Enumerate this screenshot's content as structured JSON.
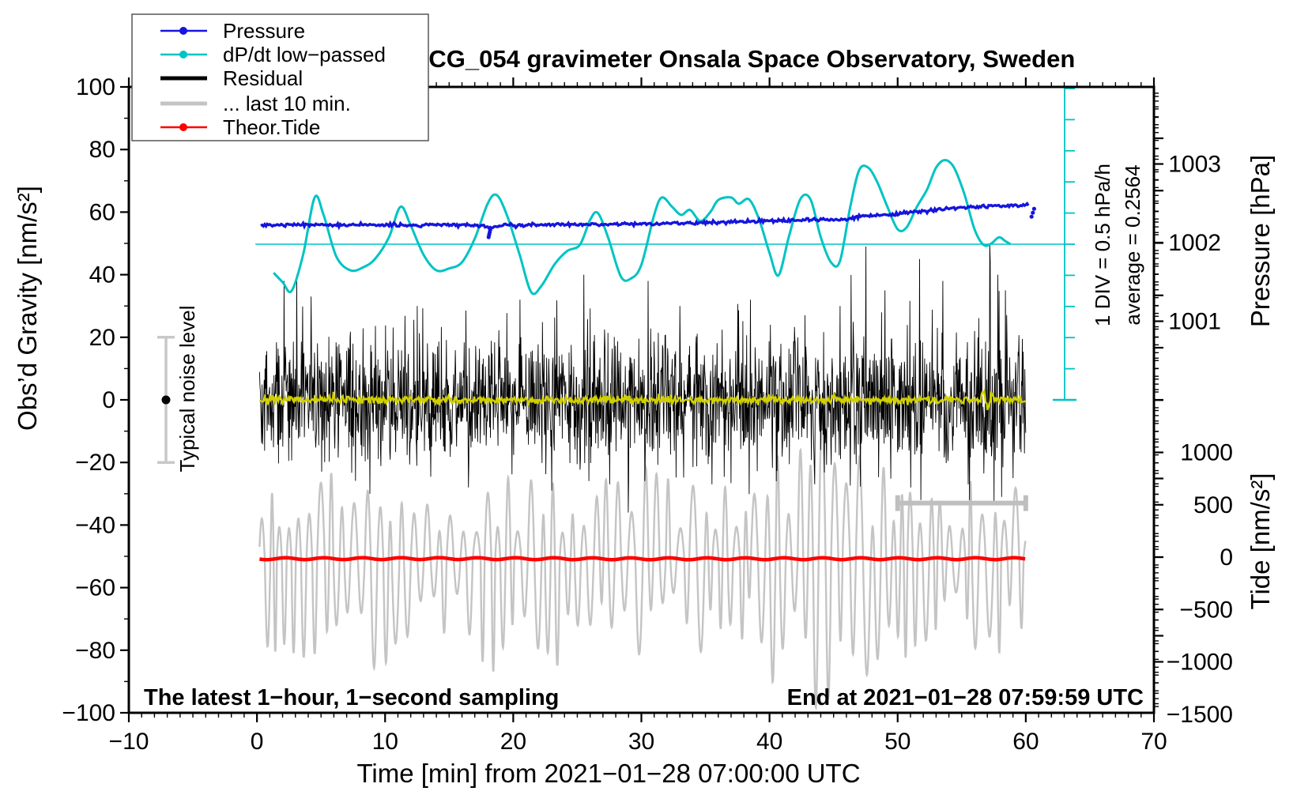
{
  "title": "SCG_054 gravimeter Onsala Space Observatory, Sweden",
  "legend": {
    "items": [
      {
        "label": "Pressure",
        "color": "#1515dd",
        "style": "line-dot"
      },
      {
        "label": "dP/dt low−passed",
        "color": "#00c3c3",
        "style": "line-dot"
      },
      {
        "label": "Residual",
        "color": "#000000",
        "style": "thick-line"
      },
      {
        "label": "... last 10 min.",
        "color": "#c4c4c4",
        "style": "thick-line"
      },
      {
        "label": "Theor.Tide",
        "color": "#ff0000",
        "style": "line-dot"
      }
    ]
  },
  "annotations": {
    "noise_label": "Typical noise level",
    "div_label": "1 DIV = 0.5 hPa/h",
    "average_label": "average = 0.2564",
    "sampling_label": "The latest 1−hour, 1−second sampling",
    "end_label": "End at 2021−01−28 07:59:59 UTC"
  },
  "chart_data": {
    "type": "line",
    "x_axis": {
      "label": "Time [min] from 2021−01−28 07:00:00 UTC",
      "range": [
        -10,
        70
      ],
      "major_ticks": [
        -10,
        0,
        10,
        20,
        30,
        40,
        50,
        60,
        70
      ],
      "minor_step": 1
    },
    "y_left": {
      "label": "Obs’d Gravity [nm/s²]",
      "range": [
        -100,
        100
      ],
      "major_ticks": [
        -100,
        -80,
        -60,
        -40,
        -20,
        0,
        20,
        40,
        60,
        80,
        100
      ],
      "minor_step": 10
    },
    "y_pressure": {
      "label": "Pressure [hPa]",
      "labeled_ticks": [
        1003,
        1002,
        1001
      ],
      "major_step": 1,
      "minor_step": 0.1
    },
    "y_tide": {
      "label": "Tide [nm/s²]",
      "labeled_ticks": [
        1000,
        500,
        0,
        -500,
        -1000,
        -1500
      ],
      "major_step": 500,
      "minor_step": 100
    },
    "series": {
      "pressure": {
        "name": "Pressure",
        "units": "hPa",
        "color": "#1515dd",
        "points": [
          [
            0.3,
            1002.221
          ],
          [
            3,
            1002.226
          ],
          [
            6,
            1002.221
          ],
          [
            9,
            1002.226
          ],
          [
            12,
            1002.221
          ],
          [
            15,
            1002.226
          ],
          [
            17.9,
            1002.211
          ],
          [
            18.2,
            1002.191
          ],
          [
            19,
            1002.216
          ],
          [
            22,
            1002.221
          ],
          [
            25,
            1002.231
          ],
          [
            28,
            1002.236
          ],
          [
            31,
            1002.241
          ],
          [
            34,
            1002.251
          ],
          [
            37,
            1002.261
          ],
          [
            40,
            1002.276
          ],
          [
            42,
            1002.283
          ],
          [
            44,
            1002.288
          ],
          [
            45.4,
            1002.291
          ],
          [
            47,
            1002.322
          ],
          [
            48,
            1002.342
          ],
          [
            50,
            1002.372
          ],
          [
            52,
            1002.402
          ],
          [
            54,
            1002.432
          ],
          [
            56,
            1002.452
          ],
          [
            58,
            1002.467
          ],
          [
            59.5,
            1002.477
          ],
          [
            60.3,
            1002.482
          ]
        ],
        "outlier_dots": [
          [
            18.08,
            1002.07
          ],
          [
            18.12,
            1002.1
          ],
          [
            18.16,
            1002.13
          ],
          [
            18.2,
            1002.16
          ],
          [
            60.45,
            1002.33
          ],
          [
            60.55,
            1002.38
          ],
          [
            60.65,
            1002.43
          ]
        ]
      },
      "dpdt_lowpassed": {
        "name": "dP/dt low-passed",
        "units": "hPa/h",
        "color": "#00c3c3",
        "zero_line_gravity_level_nms2": 50,
        "div_value_hpa_per_h": 0.5,
        "average_hpa_per_h": 0.2564,
        "points": [
          [
            1.3,
            -0.46
          ],
          [
            2.0,
            -0.61
          ],
          [
            2.7,
            -0.75
          ],
          [
            3.6,
            -0.17
          ],
          [
            4.5,
            0.75
          ],
          [
            5.2,
            0.47
          ],
          [
            6.2,
            -0.2
          ],
          [
            7.3,
            -0.42
          ],
          [
            8.3,
            -0.37
          ],
          [
            9.2,
            -0.24
          ],
          [
            10.3,
            0.11
          ],
          [
            11.2,
            0.6
          ],
          [
            12.0,
            0.3
          ],
          [
            13.0,
            -0.17
          ],
          [
            14.0,
            -0.42
          ],
          [
            15.0,
            -0.39
          ],
          [
            16.0,
            -0.29
          ],
          [
            17.0,
            0.09
          ],
          [
            18.0,
            0.65
          ],
          [
            18.7,
            0.79
          ],
          [
            19.5,
            0.47
          ],
          [
            20.5,
            -0.17
          ],
          [
            21.4,
            -0.77
          ],
          [
            22.2,
            -0.67
          ],
          [
            23.2,
            -0.33
          ],
          [
            24.2,
            -0.11
          ],
          [
            25.2,
            -0.01
          ],
          [
            26.0,
            0.39
          ],
          [
            26.6,
            0.5
          ],
          [
            27.4,
            0.11
          ],
          [
            28.4,
            -0.52
          ],
          [
            29.2,
            -0.55
          ],
          [
            30.0,
            -0.33
          ],
          [
            31.0,
            0.47
          ],
          [
            31.6,
            0.75
          ],
          [
            32.4,
            0.6
          ],
          [
            33.1,
            0.47
          ],
          [
            33.8,
            0.55
          ],
          [
            34.6,
            0.37
          ],
          [
            35.4,
            0.52
          ],
          [
            36.0,
            0.71
          ],
          [
            37.0,
            0.75
          ],
          [
            37.6,
            0.65
          ],
          [
            38.4,
            0.72
          ],
          [
            39.2,
            0.39
          ],
          [
            40.0,
            -0.14
          ],
          [
            40.7,
            -0.5
          ],
          [
            41.5,
            0.11
          ],
          [
            42.4,
            0.72
          ],
          [
            43.2,
            0.72
          ],
          [
            44.0,
            0.11
          ],
          [
            44.8,
            -0.29
          ],
          [
            45.5,
            -0.27
          ],
          [
            46.3,
            0.6
          ],
          [
            47.0,
            1.19
          ],
          [
            47.7,
            1.23
          ],
          [
            48.4,
            1.0
          ],
          [
            49.2,
            0.6
          ],
          [
            50.0,
            0.24
          ],
          [
            50.7,
            0.27
          ],
          [
            51.5,
            0.6
          ],
          [
            52.3,
            0.88
          ],
          [
            53.0,
            1.23
          ],
          [
            53.7,
            1.35
          ],
          [
            54.4,
            1.23
          ],
          [
            55.2,
            0.81
          ],
          [
            56.0,
            0.24
          ],
          [
            56.7,
            -0.01
          ],
          [
            57.3,
            0.01
          ],
          [
            57.9,
            0.11
          ],
          [
            58.4,
            0.05
          ],
          [
            58.8,
            0.0
          ]
        ]
      },
      "residual": {
        "name": "Residual",
        "units": "nm/s2",
        "color": "#000000",
        "mean": 0,
        "sigma_envelope": [
          [
            0.2,
            9
          ],
          [
            4,
            10
          ],
          [
            8,
            10
          ],
          [
            12,
            10
          ],
          [
            16,
            9
          ],
          [
            20,
            10
          ],
          [
            24,
            11
          ],
          [
            28,
            10
          ],
          [
            32,
            10
          ],
          [
            36,
            10
          ],
          [
            40,
            10
          ],
          [
            44,
            10
          ],
          [
            48,
            11
          ],
          [
            52,
            10
          ],
          [
            56,
            11
          ],
          [
            57.5,
            14
          ],
          [
            58.5,
            12
          ],
          [
            60,
            9
          ]
        ],
        "spikes": [
          [
            2.1,
            38
          ],
          [
            3.1,
            40
          ],
          [
            4.2,
            33
          ],
          [
            8.8,
            -30
          ],
          [
            12.5,
            30
          ],
          [
            16.5,
            -28
          ],
          [
            20.5,
            32
          ],
          [
            23,
            -29
          ],
          [
            25.5,
            40
          ],
          [
            27.5,
            -27
          ],
          [
            29,
            -26
          ],
          [
            30.5,
            38
          ],
          [
            33,
            30
          ],
          [
            35.5,
            -27
          ],
          [
            38.5,
            32
          ],
          [
            40.5,
            -26
          ],
          [
            43.5,
            -27
          ],
          [
            45.5,
            30
          ],
          [
            47.5,
            49
          ],
          [
            49,
            35
          ],
          [
            51,
            -28
          ],
          [
            51.7,
            45
          ],
          [
            51.8,
            -32
          ],
          [
            53.5,
            38
          ],
          [
            55.5,
            -27
          ],
          [
            57.2,
            44
          ],
          [
            57.5,
            -33
          ],
          [
            57.8,
            40
          ],
          [
            58.1,
            -31
          ],
          [
            58.4,
            35
          ],
          [
            59,
            -25
          ]
        ],
        "seed": 42
      },
      "residual_lowpass": {
        "name": "Residual low-pass",
        "units": "nm/s2",
        "color": "#d0d000",
        "mean": 0,
        "sigma": 0.6,
        "seed": 7
      },
      "theor_tide": {
        "name": "Theor.Tide",
        "units": "nm/s2 (tide scale)",
        "color": "#ff0000",
        "points": [
          [
            0.2,
            -15
          ],
          [
            15,
            -14
          ],
          [
            30,
            -16
          ],
          [
            45,
            -15
          ],
          [
            60,
            -15
          ]
        ]
      },
      "last10min": {
        "name": "... last 10 min.",
        "units": "nm/s2 (tide scale)",
        "color": "#c4c4c4",
        "center": -15,
        "period_min": 0.9,
        "amp_envelope": [
          [
            0.2,
            720
          ],
          [
            3,
            870
          ],
          [
            6,
            790
          ],
          [
            9,
            1020
          ],
          [
            12,
            640
          ],
          [
            15,
            755
          ],
          [
            18,
            870
          ],
          [
            21,
            755
          ],
          [
            24,
            790
          ],
          [
            27,
            720
          ],
          [
            30,
            870
          ],
          [
            33,
            755
          ],
          [
            36,
            790
          ],
          [
            39,
            870
          ],
          [
            42,
            1210
          ],
          [
            44,
            1400
          ],
          [
            46,
            1210
          ],
          [
            48,
            980
          ],
          [
            50,
            870
          ],
          [
            52,
            790
          ],
          [
            54,
            755
          ],
          [
            56,
            790
          ],
          [
            58,
            755
          ],
          [
            60,
            640
          ]
        ],
        "seed": 99
      },
      "noise_errorbar": {
        "center_nms2": 0,
        "half_range_nms2": 20,
        "t_position": -7.1
      },
      "last10_bracket": {
        "t_range": [
          50,
          60
        ],
        "gravity_level_nms2": -33
      }
    }
  }
}
